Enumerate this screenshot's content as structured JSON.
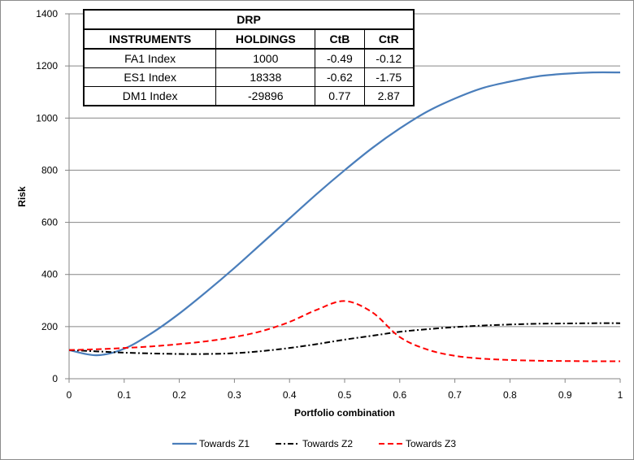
{
  "chart_data": {
    "type": "line",
    "xlabel": "Portfolio combination",
    "ylabel": "Risk",
    "xlim": [
      0,
      1
    ],
    "ylim": [
      0,
      1400
    ],
    "xticks": [
      0,
      0.1,
      0.2,
      0.3,
      0.4,
      0.5,
      0.6,
      0.7,
      0.8,
      0.9,
      1
    ],
    "xtick_labels": [
      "0",
      "0.1",
      "0.2",
      "0.3",
      "0.4",
      "0.5",
      "0.6",
      "0.7",
      "0.8",
      "0.9",
      "1"
    ],
    "yticks": [
      0,
      200,
      400,
      600,
      800,
      1000,
      1200,
      1400
    ],
    "ytick_labels": [
      "0",
      "200",
      "400",
      "600",
      "800",
      "1000",
      "1200",
      "1400"
    ],
    "grid": "horizontal",
    "legend_position": "bottom",
    "x": [
      0,
      0.05,
      0.1,
      0.15,
      0.2,
      0.25,
      0.3,
      0.35,
      0.4,
      0.45,
      0.5,
      0.55,
      0.6,
      0.65,
      0.7,
      0.75,
      0.8,
      0.85,
      0.9,
      0.95,
      1
    ],
    "series": [
      {
        "name": "Towards Z1",
        "color": "#4a7ebb",
        "dash": "solid",
        "values": [
          110,
          90,
          115,
          175,
          250,
          335,
          425,
          520,
          615,
          710,
          800,
          885,
          960,
          1025,
          1075,
          1115,
          1140,
          1160,
          1170,
          1175,
          1175
        ]
      },
      {
        "name": "Towards Z2",
        "color": "#000000",
        "dash": "dashdot",
        "values": [
          110,
          105,
          100,
          97,
          95,
          95,
          98,
          106,
          118,
          133,
          150,
          165,
          180,
          190,
          198,
          204,
          208,
          211,
          212,
          213,
          213
        ]
      },
      {
        "name": "Towards Z3",
        "color": "#ff0000",
        "dash": "dashed",
        "values": [
          110,
          113,
          118,
          124,
          133,
          144,
          160,
          183,
          218,
          265,
          298,
          255,
          160,
          112,
          88,
          77,
          72,
          69,
          68,
          67,
          67
        ]
      }
    ]
  },
  "table": {
    "title": "DRP",
    "headers": [
      "INSTRUMENTS",
      "HOLDINGS",
      "CtB",
      "CtR"
    ],
    "rows": [
      [
        "FA1 Index",
        "1000",
        "-0.49",
        "-0.12"
      ],
      [
        "ES1 Index",
        "18338",
        "-0.62",
        "-1.75"
      ],
      [
        "DM1 Index",
        "-29896",
        "0.77",
        "2.87"
      ]
    ]
  }
}
